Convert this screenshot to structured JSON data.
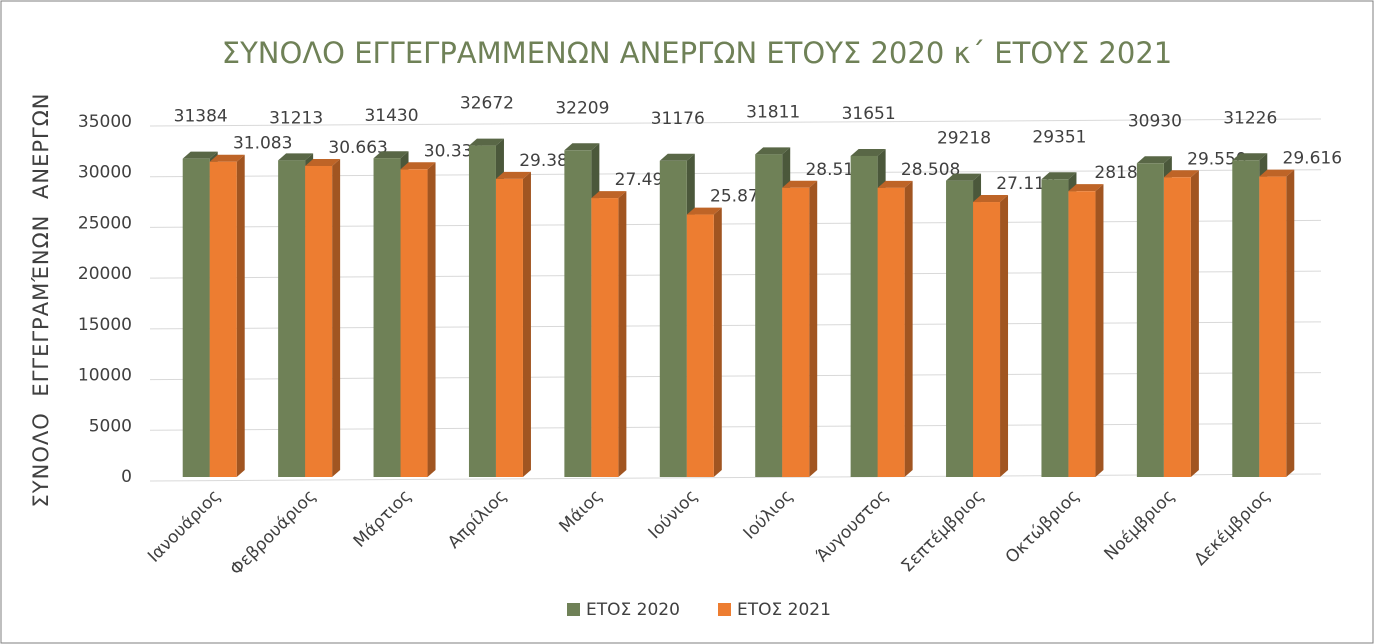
{
  "chart_data": {
    "type": "bar",
    "title": "ΣΥΝΟΛΟ ΕΓΓΕΓΡΑΜΜΕΝΩΝ ΑΝΕΡΓΩΝ ΕΤΟΥΣ 2020 κ΄ ΕΤΟΥΣ 2021",
    "y_label": "ΣΥΝΟΛΟ ΕΓΓΕΓΡΑΜΈΝΩΝ ΑΝΕΡΓΩΝ",
    "categories": [
      "Ιανουάριος",
      "Φεβρουάριος",
      "Μάρτιος",
      "Απρίλιος",
      "Μάιος",
      "Ιούνιος",
      "Ιούλιος",
      "Άυγουστος",
      "Σεπτέμβριος",
      "Οκτώβριος",
      "Νοέμβριος",
      "Δεκέμβριος"
    ],
    "series": [
      {
        "name": "ΕΤΟΣ 2020",
        "color": "#6f8157",
        "values": [
          31384,
          31213,
          31430,
          32672,
          32209,
          31176,
          31811,
          31651,
          29218,
          29351,
          30930,
          31226
        ]
      },
      {
        "name": "ΕΤΟΣ 2021",
        "color": "#ed7d31",
        "values": [
          31083,
          30663,
          30336,
          29389,
          27498,
          25873,
          28516,
          28508,
          27110,
          28180,
          29550,
          29616
        ],
        "value_labels": [
          "31.083",
          "30.663",
          "30.336",
          "29.389",
          "27.498",
          "25.873",
          "28.516",
          "28.508",
          "27.110",
          "28180",
          "29.550",
          "29.616"
        ]
      }
    ],
    "ylim": [
      0,
      35000
    ],
    "yticks": [
      0,
      5000,
      10000,
      15000,
      20000,
      25000,
      30000,
      35000
    ],
    "grid": true,
    "legend": "bottom"
  }
}
